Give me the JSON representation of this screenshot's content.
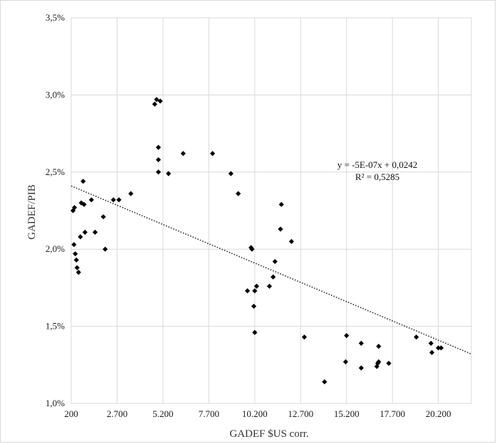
{
  "chart_data": {
    "type": "scatter",
    "xlabel": "GADEF $US corr.",
    "ylabel": "GADEF/PIB",
    "xlim": [
      200,
      22000
    ],
    "ylim": [
      0.01,
      0.035
    ],
    "x_ticks": [
      200,
      2700,
      5200,
      7700,
      10200,
      12700,
      15200,
      17700,
      20200
    ],
    "x_tick_labels": [
      "200",
      "2.700",
      "5.200",
      "7.700",
      "10.200",
      "12.700",
      "15.200",
      "17.700",
      "20.200"
    ],
    "y_ticks": [
      0.01,
      0.015,
      0.02,
      0.025,
      0.03,
      0.035
    ],
    "y_tick_labels": [
      "1,0%",
      "1,5%",
      "2,0%",
      "2,5%",
      "3,0%",
      "3,5%"
    ],
    "grid": {
      "x": true,
      "y": true
    },
    "marker_color": "#000000",
    "trendline": {
      "type": "linear",
      "slope": -5e-07,
      "intercept": 0.0242,
      "r2": 0.5285,
      "equation_label": "y = -5E-07x + 0,0242",
      "r2_label": "R² = 0,5285"
    },
    "points": [
      {
        "x": 300,
        "y": 0.0225
      },
      {
        "x": 380,
        "y": 0.0227
      },
      {
        "x": 350,
        "y": 0.0203
      },
      {
        "x": 420,
        "y": 0.0197
      },
      {
        "x": 480,
        "y": 0.0193
      },
      {
        "x": 520,
        "y": 0.0188
      },
      {
        "x": 600,
        "y": 0.0185
      },
      {
        "x": 700,
        "y": 0.0208
      },
      {
        "x": 750,
        "y": 0.023
      },
      {
        "x": 900,
        "y": 0.0229
      },
      {
        "x": 950,
        "y": 0.0211
      },
      {
        "x": 850,
        "y": 0.0244
      },
      {
        "x": 1300,
        "y": 0.0232
      },
      {
        "x": 1500,
        "y": 0.0211
      },
      {
        "x": 1950,
        "y": 0.0221
      },
      {
        "x": 2050,
        "y": 0.02
      },
      {
        "x": 2500,
        "y": 0.0232
      },
      {
        "x": 2800,
        "y": 0.0232
      },
      {
        "x": 3450,
        "y": 0.0236
      },
      {
        "x": 4750,
        "y": 0.0294
      },
      {
        "x": 4850,
        "y": 0.0297
      },
      {
        "x": 5050,
        "y": 0.0296
      },
      {
        "x": 4950,
        "y": 0.0266
      },
      {
        "x": 4950,
        "y": 0.0258
      },
      {
        "x": 4950,
        "y": 0.025
      },
      {
        "x": 5500,
        "y": 0.0249
      },
      {
        "x": 6300,
        "y": 0.0262
      },
      {
        "x": 7900,
        "y": 0.0262
      },
      {
        "x": 8900,
        "y": 0.0249
      },
      {
        "x": 9300,
        "y": 0.0236
      },
      {
        "x": 9800,
        "y": 0.0173
      },
      {
        "x": 10000,
        "y": 0.0201
      },
      {
        "x": 10050,
        "y": 0.02
      },
      {
        "x": 10200,
        "y": 0.0173
      },
      {
        "x": 10300,
        "y": 0.0176
      },
      {
        "x": 10150,
        "y": 0.0163
      },
      {
        "x": 10200,
        "y": 0.0146
      },
      {
        "x": 11000,
        "y": 0.0176
      },
      {
        "x": 11200,
        "y": 0.0182
      },
      {
        "x": 11300,
        "y": 0.0192
      },
      {
        "x": 11650,
        "y": 0.0229
      },
      {
        "x": 11600,
        "y": 0.0213
      },
      {
        "x": 12200,
        "y": 0.0205
      },
      {
        "x": 12900,
        "y": 0.0143
      },
      {
        "x": 14000,
        "y": 0.0114
      },
      {
        "x": 15200,
        "y": 0.0144
      },
      {
        "x": 15150,
        "y": 0.0127
      },
      {
        "x": 16000,
        "y": 0.0139
      },
      {
        "x": 16000,
        "y": 0.0123
      },
      {
        "x": 16850,
        "y": 0.0124
      },
      {
        "x": 16900,
        "y": 0.0126
      },
      {
        "x": 16950,
        "y": 0.0127
      },
      {
        "x": 16950,
        "y": 0.0137
      },
      {
        "x": 17500,
        "y": 0.0126
      },
      {
        "x": 19000,
        "y": 0.0143
      },
      {
        "x": 19800,
        "y": 0.0139
      },
      {
        "x": 19850,
        "y": 0.0133
      },
      {
        "x": 20200,
        "y": 0.0136
      },
      {
        "x": 20350,
        "y": 0.0136
      }
    ]
  }
}
